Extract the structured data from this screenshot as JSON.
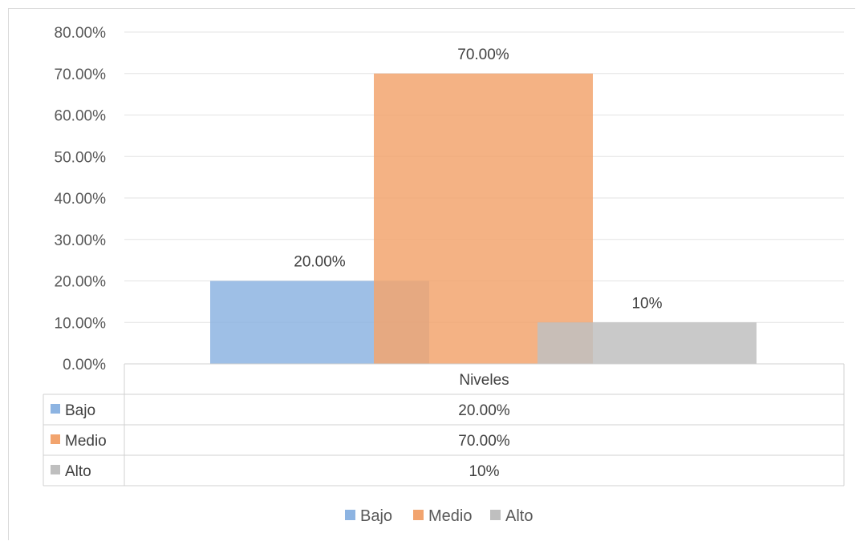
{
  "chart_data": {
    "type": "bar",
    "categories": [
      "Niveles"
    ],
    "series": [
      {
        "name": "Bajo",
        "values": [
          0.2
        ],
        "label": "20.00%",
        "color": "#8DB4E2"
      },
      {
        "name": "Medio",
        "values": [
          0.7
        ],
        "label": "70.00%",
        "color": "#F2A46E"
      },
      {
        "name": "Alto",
        "values": [
          0.1
        ],
        "label": "10%",
        "color": "#BFBFBF"
      }
    ],
    "title": "",
    "xlabel": "",
    "ylabel": "",
    "ylim": [
      0,
      0.8
    ],
    "y_ticks": [
      "0.00%",
      "10.00%",
      "20.00%",
      "30.00%",
      "40.00%",
      "50.00%",
      "60.00%",
      "70.00%",
      "80.00%"
    ],
    "grid": true,
    "data_table": true,
    "legend_position": "bottom"
  }
}
